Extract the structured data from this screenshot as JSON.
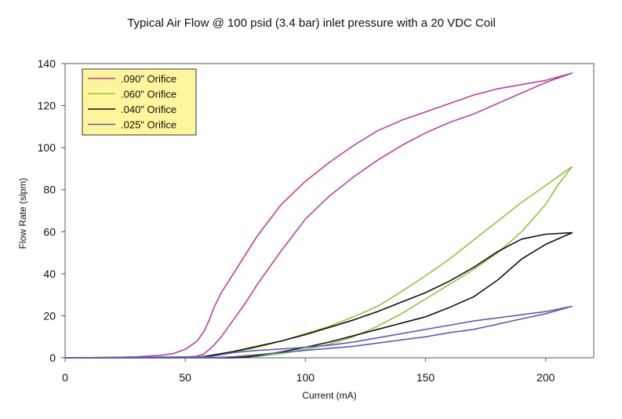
{
  "chart_data": {
    "type": "line",
    "title": "Typical Air Flow @ 100 psid (3.4 bar) inlet pressure with a 20 VDC Coil",
    "xlabel": "Current (mA)",
    "ylabel": "Flow Rate (slpm)",
    "xlim": [
      0,
      220
    ],
    "ylim": [
      0,
      140
    ],
    "xticks": [
      0,
      50,
      100,
      150,
      200
    ],
    "yticks": [
      0,
      20,
      40,
      60,
      80,
      100,
      120,
      140
    ],
    "grid": false,
    "legend_position": "top-left",
    "series": [
      {
        "name": ".090\" Orifice",
        "color": "#b4439e",
        "x": [
          0,
          20,
          30,
          40,
          45,
          50,
          55,
          58,
          60,
          62,
          65,
          70,
          80,
          90,
          100,
          110,
          120,
          130,
          140,
          150,
          160,
          170,
          180,
          190,
          200,
          211,
          200,
          190,
          180,
          170,
          160,
          150,
          140,
          130,
          120,
          110,
          100,
          90,
          80,
          75,
          70,
          65,
          62,
          60,
          58,
          55,
          50,
          30,
          0
        ],
        "y": [
          0,
          0.2,
          0.5,
          1.2,
          2,
          4,
          8,
          13,
          18,
          24,
          31,
          40,
          58,
          73,
          84,
          93,
          101,
          108,
          113,
          117,
          121,
          125,
          128,
          130,
          132,
          135.5,
          131,
          126,
          121,
          116,
          112,
          107,
          101,
          94,
          86,
          77,
          66,
          51,
          35,
          26,
          18,
          10,
          6,
          4,
          2,
          0.8,
          0.3,
          0,
          0
        ]
      },
      {
        "name": ".060\" Orifice",
        "color": "#8cc63f",
        "x": [
          0,
          60,
          70,
          80,
          90,
          100,
          110,
          120,
          130,
          140,
          150,
          160,
          170,
          180,
          190,
          200,
          211,
          205,
          200,
          190,
          180,
          170,
          160,
          150,
          140,
          130,
          120,
          110,
          100,
          90,
          80,
          70,
          60,
          0
        ],
        "y": [
          0,
          0.5,
          2.5,
          5,
          8,
          11.5,
          15,
          19.5,
          24.5,
          31.5,
          39,
          47,
          56,
          65,
          74,
          82,
          91,
          82,
          73,
          60,
          50,
          42,
          35,
          28,
          21,
          15,
          10,
          6.5,
          4,
          2,
          0.8,
          0.2,
          0,
          0
        ]
      },
      {
        "name": ".040\" Orifice",
        "color": "#111111",
        "x": [
          0,
          55,
          60,
          70,
          80,
          90,
          100,
          110,
          120,
          130,
          140,
          150,
          160,
          170,
          180,
          190,
          200,
          211,
          200,
          190,
          180,
          170,
          160,
          150,
          140,
          130,
          120,
          110,
          100,
          90,
          80,
          75,
          70,
          0
        ],
        "y": [
          0,
          0.3,
          1,
          3,
          5.5,
          8,
          11,
          14.5,
          18,
          22,
          26.5,
          31,
          36.5,
          43,
          50.5,
          56.5,
          58.8,
          59.5,
          54,
          47,
          37,
          29,
          24,
          19.5,
          16.5,
          13.5,
          10.5,
          7.5,
          5,
          2.8,
          1,
          0.3,
          0,
          0
        ]
      },
      {
        "name": ".025\" Orifice",
        "color": "#5b5fb0",
        "x": [
          0,
          60,
          70,
          80,
          90,
          100,
          110,
          120,
          130,
          140,
          150,
          160,
          170,
          180,
          190,
          200,
          211,
          200,
          190,
          180,
          170,
          160,
          150,
          140,
          130,
          120,
          110,
          100,
          90,
          80,
          70,
          60,
          0
        ],
        "y": [
          0,
          0.5,
          2.5,
          3.5,
          4.2,
          5,
          6,
          7.5,
          9.5,
          11.5,
          13.5,
          15.5,
          17.5,
          19,
          20.5,
          22,
          24.5,
          21,
          18.5,
          16,
          13.5,
          12,
          10,
          8.5,
          7,
          5.5,
          4.5,
          3.5,
          2.5,
          1.5,
          0.5,
          0,
          0
        ]
      }
    ]
  }
}
